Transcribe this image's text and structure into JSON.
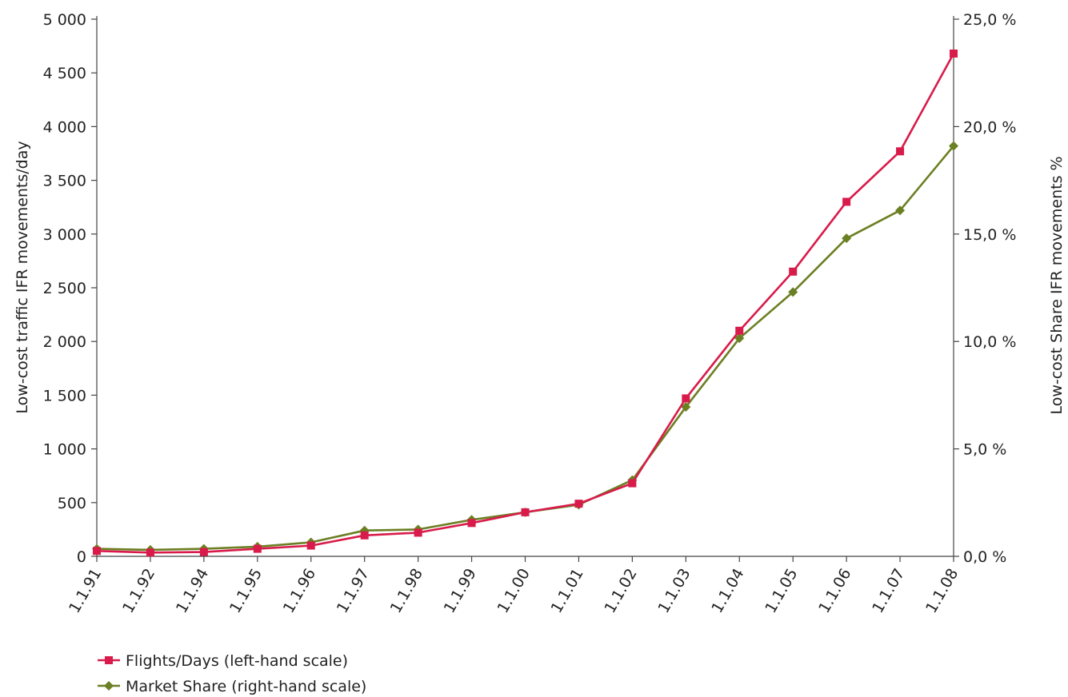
{
  "chart_data": {
    "type": "line",
    "title": "",
    "xlabel": "",
    "ylabel_left": "Low-cost traffic IFR movements/day",
    "ylabel_right": "Low-cost Share IFR movements %",
    "categories": [
      "1.1.91",
      "1.1.92",
      "1.1.94",
      "1.1.95",
      "1.1.96",
      "1.1.97",
      "1.1.98",
      "1.1.99",
      "1.1.00",
      "1.1.01",
      "1.1.02",
      "1.1.03",
      "1.1.04",
      "1.1.05",
      "1.1.06",
      "1.1.07",
      "1.1.08"
    ],
    "ylim_left": [
      0,
      5000
    ],
    "yticks_left": [
      0,
      500,
      1000,
      1500,
      2000,
      2500,
      3000,
      3500,
      4000,
      4500,
      5000
    ],
    "yticks_left_labels": [
      "0",
      "500",
      "1 000",
      "1 500",
      "2 000",
      "2 500",
      "3 000",
      "3 500",
      "4 000",
      "4 500",
      "5 000"
    ],
    "ylim_right": [
      0,
      25
    ],
    "yticks_right": [
      0,
      5,
      10,
      15,
      20,
      25
    ],
    "yticks_right_labels": [
      "0,0 %",
      "5,0 %",
      "10,0 %",
      "15,0 %",
      "20,0 %",
      "25,0 %"
    ],
    "grid": false,
    "legend_position": "bottom-left",
    "series": [
      {
        "name": "Flights/Days (left-hand scale)",
        "axis": "left",
        "color": "#d81b4a",
        "marker": "square",
        "values": [
          50,
          35,
          40,
          70,
          100,
          195,
          220,
          310,
          410,
          490,
          680,
          1470,
          2100,
          2650,
          3300,
          3770,
          4680
        ]
      },
      {
        "name": "Market Share (right-hand scale)",
        "axis": "right",
        "color": "#6b7f23",
        "marker": "diamond",
        "values": [
          0.35,
          0.3,
          0.35,
          0.45,
          0.65,
          1.2,
          1.25,
          1.7,
          2.05,
          2.4,
          3.55,
          6.95,
          10.15,
          12.3,
          14.8,
          16.1,
          19.1
        ]
      }
    ]
  }
}
